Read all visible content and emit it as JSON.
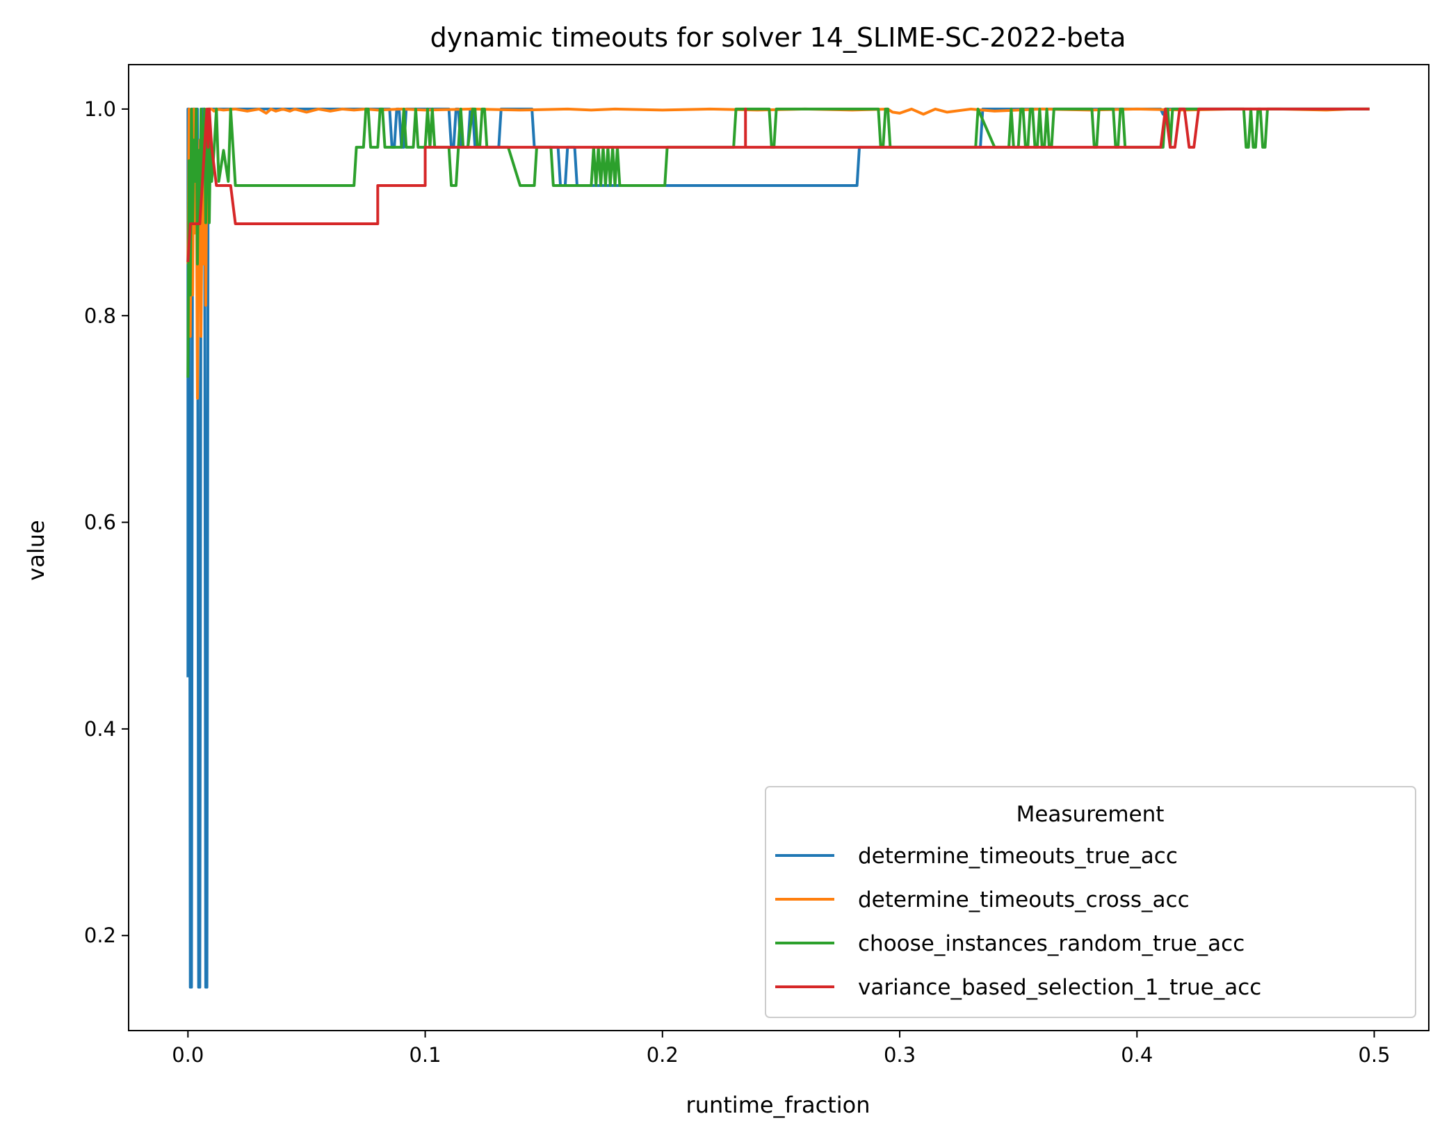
{
  "chart_data": {
    "type": "line",
    "title": "dynamic timeouts for solver 14_SLIME-SC-2022-beta",
    "xlabel": "runtime_fraction",
    "ylabel": "value",
    "xlim": [
      -0.025,
      0.523
    ],
    "ylim": [
      0.108,
      1.043
    ],
    "xticks": [
      0.0,
      0.1,
      0.2,
      0.3,
      0.4,
      0.5
    ],
    "xtick_labels": [
      "0.0",
      "0.1",
      "0.2",
      "0.3",
      "0.4",
      "0.5"
    ],
    "yticks": [
      0.2,
      0.4,
      0.6,
      0.8,
      1.0
    ],
    "ytick_labels": [
      "0.2",
      "0.4",
      "0.6",
      "0.8",
      "1.0"
    ],
    "grid": false,
    "legend": {
      "title": "Measurement",
      "placement": "lower right"
    },
    "series": [
      {
        "name": "determine_timeouts_true_acc",
        "color": "#1f77b4",
        "x": [
          0.0,
          0.0,
          0.0005,
          0.001,
          0.0015,
          0.002,
          0.003,
          0.0035,
          0.004,
          0.0045,
          0.005,
          0.0055,
          0.006,
          0.007,
          0.0075,
          0.008,
          0.0085,
          0.009,
          0.0095,
          0.01,
          0.012,
          0.085,
          0.086,
          0.087,
          0.088,
          0.089,
          0.09,
          0.091,
          0.092,
          0.093,
          0.094,
          0.095,
          0.11,
          0.111,
          0.112,
          0.113,
          0.114,
          0.115,
          0.116,
          0.117,
          0.118,
          0.119,
          0.12,
          0.121,
          0.122,
          0.123,
          0.124,
          0.125,
          0.126,
          0.127,
          0.128,
          0.129,
          0.13,
          0.131,
          0.132,
          0.133,
          0.134,
          0.145,
          0.146,
          0.147,
          0.148,
          0.149,
          0.15,
          0.155,
          0.156,
          0.157,
          0.158,
          0.159,
          0.16,
          0.161,
          0.162,
          0.163,
          0.164,
          0.165,
          0.166,
          0.167,
          0.168,
          0.169,
          0.17,
          0.171,
          0.172,
          0.173,
          0.174,
          0.175,
          0.176,
          0.177,
          0.178,
          0.179,
          0.18,
          0.181,
          0.182,
          0.183,
          0.184,
          0.185,
          0.186,
          0.187,
          0.188,
          0.189,
          0.19,
          0.28,
          0.281,
          0.282,
          0.283,
          0.284,
          0.285,
          0.333,
          0.334,
          0.335,
          0.336,
          0.337,
          0.338,
          0.339,
          0.34,
          0.41,
          0.411,
          0.412,
          0.498
        ],
        "y": [
          0.45,
          1.0,
          1.0,
          0.15,
          0.15,
          1.0,
          1.0,
          0.95,
          1.0,
          0.15,
          0.15,
          0.9,
          1.0,
          1.0,
          0.15,
          0.15,
          0.95,
          1.0,
          1.0,
          1.0,
          1.0,
          1.0,
          0.963,
          0.963,
          1.0,
          1.0,
          0.963,
          0.963,
          1.0,
          1.0,
          1.0,
          1.0,
          1.0,
          0.963,
          0.963,
          1.0,
          1.0,
          0.963,
          0.963,
          0.963,
          0.963,
          1.0,
          1.0,
          0.963,
          0.963,
          0.963,
          0.963,
          0.963,
          0.963,
          0.963,
          0.963,
          0.963,
          0.963,
          0.963,
          1.0,
          1.0,
          1.0,
          1.0,
          0.963,
          0.963,
          0.963,
          0.963,
          0.963,
          0.963,
          0.963,
          0.926,
          0.926,
          0.926,
          0.963,
          0.963,
          0.963,
          0.963,
          0.926,
          0.926,
          0.926,
          0.926,
          0.926,
          0.926,
          0.926,
          0.926,
          0.926,
          0.926,
          0.926,
          0.926,
          0.926,
          0.926,
          0.926,
          0.926,
          0.926,
          0.926,
          0.926,
          0.926,
          0.926,
          0.926,
          0.926,
          0.926,
          0.926,
          0.926,
          0.926,
          0.926,
          0.926,
          0.926,
          0.963,
          0.963,
          0.963,
          0.963,
          0.963,
          1.0,
          1.0,
          1.0,
          1.0,
          1.0,
          1.0,
          1.0,
          0.995,
          1.0,
          1.0
        ]
      },
      {
        "name": "determine_timeouts_cross_acc",
        "color": "#ff7f0e",
        "x": [
          0.0,
          0.0005,
          0.001,
          0.0015,
          0.002,
          0.0025,
          0.003,
          0.0035,
          0.004,
          0.0045,
          0.005,
          0.0055,
          0.006,
          0.0065,
          0.007,
          0.0075,
          0.008,
          0.0085,
          0.009,
          0.0095,
          0.01,
          0.011,
          0.012,
          0.015,
          0.02,
          0.025,
          0.03,
          0.033,
          0.035,
          0.037,
          0.04,
          0.043,
          0.045,
          0.05,
          0.055,
          0.06,
          0.065,
          0.07,
          0.075,
          0.08,
          0.09,
          0.1,
          0.12,
          0.14,
          0.16,
          0.17,
          0.18,
          0.2,
          0.22,
          0.24,
          0.26,
          0.28,
          0.295,
          0.297,
          0.3,
          0.305,
          0.31,
          0.315,
          0.32,
          0.33,
          0.34,
          0.36,
          0.38,
          0.4,
          0.42,
          0.44,
          0.46,
          0.48,
          0.49,
          0.498
        ],
        "y": [
          0.85,
          1.0,
          0.78,
          0.95,
          0.82,
          1.0,
          0.88,
          0.96,
          0.72,
          0.9,
          0.97,
          0.78,
          0.92,
          0.85,
          1.0,
          0.81,
          0.95,
          1.0,
          1.0,
          1.0,
          1.0,
          0.998,
          1.0,
          0.999,
          1.0,
          0.998,
          1.0,
          0.996,
          1.0,
          0.998,
          1.0,
          0.998,
          1.0,
          0.997,
          1.0,
          0.998,
          1.0,
          0.999,
          1.0,
          0.999,
          1.0,
          0.999,
          1.0,
          0.999,
          1.0,
          0.999,
          1.0,
          0.999,
          1.0,
          0.999,
          1.0,
          0.999,
          1.0,
          0.997,
          0.996,
          1.0,
          0.995,
          1.0,
          0.997,
          1.0,
          0.998,
          1.0,
          0.999,
          1.0,
          0.999,
          1.0,
          1.0,
          0.999,
          1.0,
          1.0
        ]
      },
      {
        "name": "choose_instances_random_true_acc",
        "color": "#2ca02c",
        "x": [
          0.0,
          0.0005,
          0.001,
          0.0015,
          0.002,
          0.0025,
          0.003,
          0.0035,
          0.004,
          0.0045,
          0.005,
          0.0055,
          0.006,
          0.0065,
          0.007,
          0.0075,
          0.008,
          0.0085,
          0.009,
          0.0095,
          0.01,
          0.011,
          0.012,
          0.013,
          0.015,
          0.017,
          0.018,
          0.02,
          0.022,
          0.024,
          0.025,
          0.026,
          0.028,
          0.07,
          0.071,
          0.072,
          0.073,
          0.074,
          0.075,
          0.076,
          0.077,
          0.078,
          0.08,
          0.081,
          0.082,
          0.083,
          0.084,
          0.09,
          0.091,
          0.092,
          0.093,
          0.094,
          0.095,
          0.096,
          0.097,
          0.1,
          0.101,
          0.102,
          0.103,
          0.104,
          0.105,
          0.11,
          0.111,
          0.112,
          0.113,
          0.114,
          0.115,
          0.116,
          0.117,
          0.118,
          0.12,
          0.121,
          0.122,
          0.123,
          0.124,
          0.125,
          0.126,
          0.127,
          0.128,
          0.129,
          0.13,
          0.131,
          0.132,
          0.133,
          0.134,
          0.135,
          0.14,
          0.141,
          0.142,
          0.143,
          0.144,
          0.145,
          0.146,
          0.147,
          0.148,
          0.15,
          0.151,
          0.152,
          0.153,
          0.154,
          0.155,
          0.17,
          0.171,
          0.172,
          0.173,
          0.174,
          0.175,
          0.176,
          0.177,
          0.178,
          0.179,
          0.18,
          0.181,
          0.182,
          0.183,
          0.184,
          0.185,
          0.186,
          0.187,
          0.188,
          0.189,
          0.19,
          0.2,
          0.201,
          0.202,
          0.203,
          0.204,
          0.205,
          0.206,
          0.207,
          0.208,
          0.23,
          0.231,
          0.232,
          0.233,
          0.234,
          0.235,
          0.24,
          0.245,
          0.246,
          0.247,
          0.248,
          0.249,
          0.25,
          0.26,
          0.28,
          0.29,
          0.291,
          0.292,
          0.293,
          0.294,
          0.295,
          0.296,
          0.297,
          0.298,
          0.299,
          0.3,
          0.33,
          0.331,
          0.332,
          0.333,
          0.34,
          0.345,
          0.346,
          0.347,
          0.348,
          0.349,
          0.35,
          0.351,
          0.352,
          0.353,
          0.354,
          0.355,
          0.356,
          0.357,
          0.358,
          0.359,
          0.36,
          0.361,
          0.362,
          0.363,
          0.364,
          0.365,
          0.38,
          0.381,
          0.382,
          0.383,
          0.384,
          0.385,
          0.39,
          0.391,
          0.392,
          0.393,
          0.394,
          0.395,
          0.41,
          0.411,
          0.412,
          0.413,
          0.414,
          0.415,
          0.44,
          0.445,
          0.446,
          0.447,
          0.448,
          0.449,
          0.45,
          0.451,
          0.452,
          0.453,
          0.454,
          0.455,
          0.46,
          0.498
        ],
        "y": [
          0.74,
          0.95,
          0.82,
          1.0,
          0.89,
          0.97,
          0.93,
          1.0,
          0.85,
          0.96,
          0.9,
          1.0,
          0.93,
          0.96,
          1.0,
          0.89,
          0.96,
          1.0,
          0.89,
          0.97,
          0.93,
          0.96,
          1.0,
          0.93,
          0.96,
          0.93,
          1.0,
          0.926,
          0.926,
          0.926,
          0.926,
          0.926,
          0.926,
          0.926,
          0.963,
          0.963,
          0.963,
          0.963,
          1.0,
          1.0,
          0.963,
          0.963,
          0.963,
          1.0,
          1.0,
          0.963,
          0.963,
          0.963,
          1.0,
          0.963,
          0.963,
          0.963,
          0.963,
          1.0,
          0.963,
          0.963,
          1.0,
          0.963,
          1.0,
          0.963,
          0.963,
          0.963,
          0.926,
          0.926,
          0.926,
          0.963,
          1.0,
          0.963,
          0.963,
          0.963,
          1.0,
          1.0,
          0.963,
          0.963,
          1.0,
          1.0,
          0.963,
          0.963,
          0.963,
          0.963,
          0.963,
          0.963,
          0.963,
          0.963,
          0.963,
          0.963,
          0.926,
          0.926,
          0.926,
          0.926,
          0.926,
          0.926,
          0.926,
          0.963,
          0.963,
          0.963,
          0.963,
          0.963,
          0.963,
          0.926,
          0.926,
          0.926,
          0.963,
          0.926,
          0.963,
          0.926,
          0.963,
          0.926,
          0.963,
          0.926,
          0.963,
          0.926,
          0.963,
          0.926,
          0.926,
          0.926,
          0.926,
          0.926,
          0.926,
          0.926,
          0.926,
          0.926,
          0.926,
          0.926,
          0.963,
          0.963,
          0.963,
          0.963,
          0.963,
          0.963,
          0.963,
          0.963,
          1.0,
          1.0,
          1.0,
          1.0,
          1.0,
          1.0,
          1.0,
          0.963,
          0.963,
          1.0,
          1.0,
          1.0,
          1.0,
          1.0,
          1.0,
          1.0,
          0.963,
          0.963,
          1.0,
          1.0,
          0.963,
          0.963,
          0.963,
          0.963,
          0.963,
          0.963,
          0.963,
          0.963,
          1.0,
          0.963,
          0.963,
          0.963,
          1.0,
          0.963,
          0.963,
          0.963,
          1.0,
          1.0,
          0.963,
          0.963,
          1.0,
          1.0,
          0.963,
          0.963,
          1.0,
          0.963,
          0.963,
          1.0,
          0.963,
          0.963,
          1.0,
          1.0,
          1.0,
          0.963,
          0.963,
          1.0,
          1.0,
          1.0,
          0.963,
          0.963,
          1.0,
          1.0,
          0.963,
          0.963,
          0.963,
          1.0,
          1.0,
          0.963,
          1.0,
          1.0,
          1.0,
          0.963,
          0.963,
          1.0,
          0.963,
          0.963,
          1.0,
          1.0,
          0.963,
          0.963,
          1.0,
          1.0,
          1.0
        ],
        "note": ""
      },
      {
        "name": "variance_based_selection_1_true_acc",
        "color": "#d62728",
        "x": [
          0.0,
          0.0,
          0.001,
          0.002,
          0.003,
          0.005,
          0.006,
          0.007,
          0.008,
          0.0085,
          0.009,
          0.01,
          0.012,
          0.015,
          0.016,
          0.018,
          0.02,
          0.021,
          0.08,
          0.08,
          0.1,
          0.1,
          0.235,
          0.235,
          0.235,
          0.4,
          0.405,
          0.41,
          0.412,
          0.414,
          0.416,
          0.418,
          0.42,
          0.422,
          0.424,
          0.426,
          0.498
        ],
        "y": [
          0.852,
          0.852,
          0.889,
          0.889,
          0.889,
          0.889,
          0.926,
          0.963,
          1.0,
          0.963,
          1.0,
          0.963,
          0.926,
          0.926,
          0.926,
          0.926,
          0.889,
          0.889,
          0.889,
          0.926,
          0.926,
          0.963,
          0.963,
          1.0,
          0.963,
          0.963,
          0.963,
          0.963,
          1.0,
          0.963,
          0.963,
          1.0,
          1.0,
          0.963,
          0.963,
          1.0,
          1.0
        ]
      }
    ]
  }
}
